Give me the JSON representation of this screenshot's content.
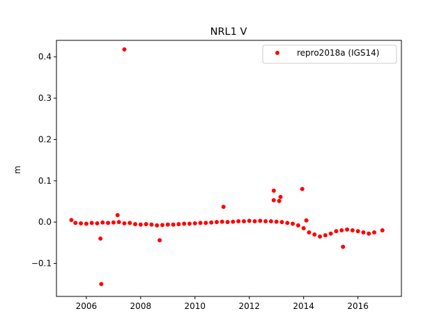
{
  "chart_data": {
    "type": "scatter",
    "title": "NRL1 V",
    "xlabel": "",
    "ylabel": "m",
    "xlim": [
      2004.9,
      2017.6
    ],
    "ylim": [
      -0.18,
      0.44
    ],
    "xticks": [
      2006,
      2008,
      2010,
      2012,
      2014,
      2016
    ],
    "xtick_labels": [
      "2006",
      "2008",
      "2010",
      "2012",
      "2014",
      "2016"
    ],
    "yticks": [
      -0.1,
      0.0,
      0.1,
      0.2,
      0.3,
      0.4
    ],
    "ytick_labels": [
      "−0.1",
      "0.0",
      "0.1",
      "0.2",
      "0.3",
      "0.4"
    ],
    "grid": false,
    "legend_position": "top-right",
    "colors": {
      "series": "#ff0000",
      "axes": "#000000",
      "background": "#ffffff"
    },
    "series": [
      {
        "name": "repro2018a (IGS14)",
        "marker": "circle",
        "x": [
          2005.45,
          2005.6,
          2005.8,
          2006.0,
          2006.2,
          2006.4,
          2006.6,
          2006.8,
          2007.0,
          2007.2,
          2007.4,
          2007.6,
          2007.8,
          2008.0,
          2008.2,
          2008.4,
          2008.6,
          2008.8,
          2009.0,
          2009.2,
          2009.4,
          2009.6,
          2009.8,
          2010.0,
          2010.2,
          2010.4,
          2010.6,
          2010.8,
          2011.0,
          2011.2,
          2011.4,
          2011.6,
          2011.8,
          2012.0,
          2012.2,
          2012.4,
          2012.6,
          2012.8,
          2013.0,
          2013.2,
          2013.4,
          2013.6,
          2013.8,
          2014.0,
          2014.2,
          2014.4,
          2014.6,
          2014.8,
          2015.0,
          2015.2,
          2015.4,
          2015.6,
          2015.8,
          2016.0,
          2016.2,
          2016.4,
          2016.6,
          2016.9,
          2007.4,
          2006.55,
          2006.52,
          2008.7,
          2007.15,
          2011.05,
          2012.9,
          2012.9,
          2013.15,
          2013.1,
          2013.95,
          2014.1,
          2015.45
        ],
        "y": [
          0.005,
          -0.002,
          -0.003,
          -0.004,
          -0.002,
          -0.003,
          -0.001,
          -0.002,
          -0.001,
          0.0,
          -0.003,
          -0.002,
          -0.005,
          -0.006,
          -0.005,
          -0.006,
          -0.008,
          -0.007,
          -0.006,
          -0.006,
          -0.005,
          -0.004,
          -0.004,
          -0.003,
          -0.002,
          -0.002,
          -0.001,
          0.0,
          0.001,
          0.0,
          0.001,
          0.002,
          0.002,
          0.003,
          0.002,
          0.003,
          0.002,
          0.002,
          0.001,
          0.0,
          -0.002,
          -0.004,
          -0.008,
          -0.015,
          -0.025,
          -0.03,
          -0.035,
          -0.032,
          -0.028,
          -0.022,
          -0.02,
          -0.018,
          -0.02,
          -0.022,
          -0.025,
          -0.028,
          -0.025,
          -0.02,
          0.418,
          -0.15,
          -0.04,
          -0.044,
          0.017,
          0.037,
          0.076,
          0.053,
          0.061,
          0.051,
          0.08,
          0.004,
          -0.06
        ]
      }
    ]
  }
}
